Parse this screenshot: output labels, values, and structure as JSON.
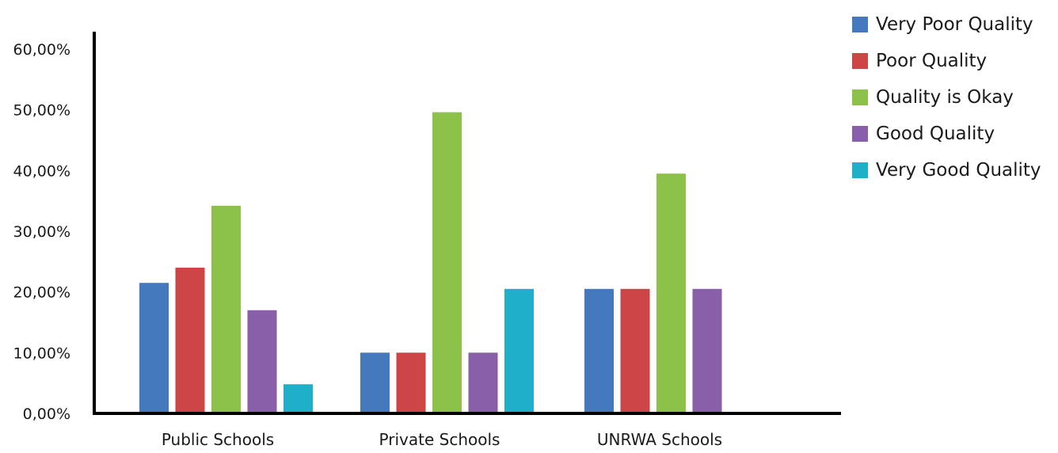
{
  "chart_data": {
    "type": "bar",
    "categories": [
      "Public Schools",
      "Private Schools",
      "UNRWA Schools"
    ],
    "series": [
      {
        "name": "Very Poor Quality",
        "color": "#4479bd",
        "values": [
          21.5,
          10.0,
          20.5
        ]
      },
      {
        "name": "Poor Quality",
        "color": "#cd4545",
        "values": [
          24.0,
          10.0,
          20.5
        ]
      },
      {
        "name": "Quality is Okay",
        "color": "#8dc24a",
        "values": [
          34.2,
          49.6,
          39.5
        ]
      },
      {
        "name": "Good Quality",
        "color": "#8a5fa9",
        "values": [
          17.0,
          10.0,
          20.5
        ]
      },
      {
        "name": "Very Good Quality",
        "color": "#1fafc9",
        "values": [
          4.8,
          20.5,
          null
        ]
      }
    ],
    "y_ticks": [
      "0,00%",
      "10,00%",
      "20,00%",
      "30,00%",
      "40,00%",
      "50,00%",
      "60,00%"
    ],
    "ylim": [
      0,
      60
    ],
    "legend_position": "top-right",
    "grid": false
  }
}
